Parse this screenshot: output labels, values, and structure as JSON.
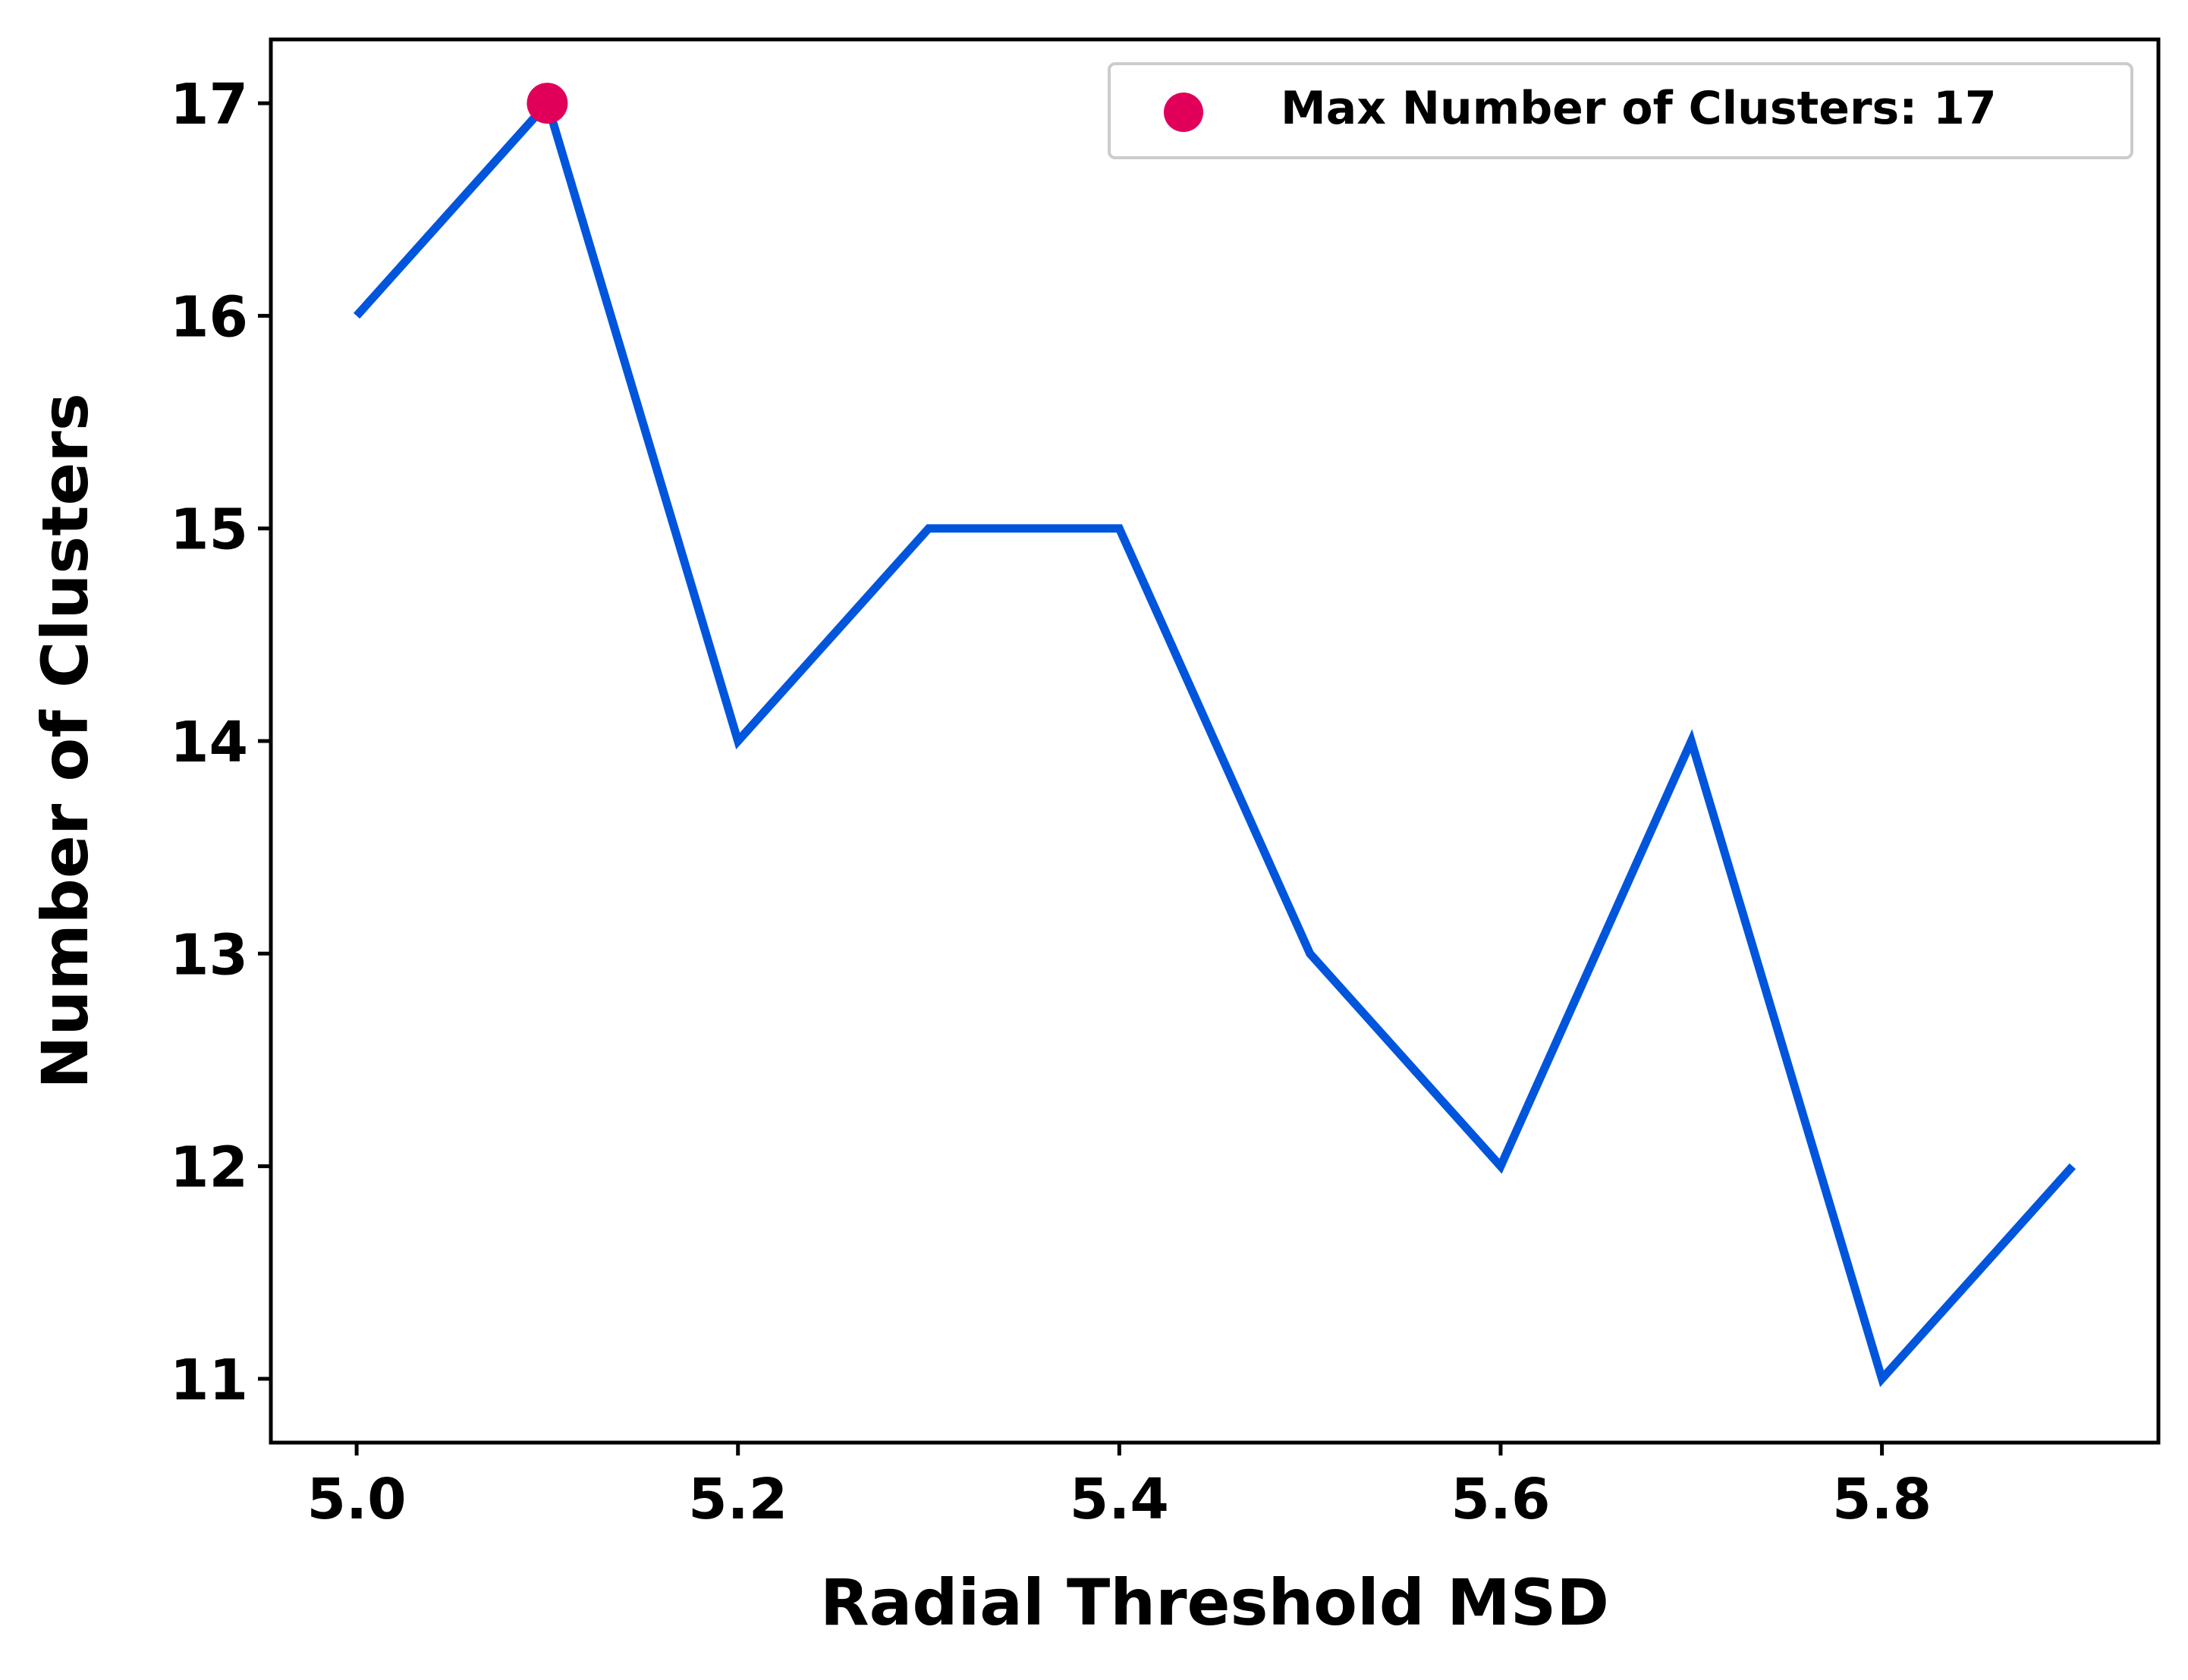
{
  "chart_data": {
    "type": "line",
    "title": "",
    "xlabel": "Radial Threshold MSD",
    "ylabel": "Number of Clusters",
    "x": [
      5.0,
      5.1,
      5.2,
      5.3,
      5.4,
      5.5,
      5.6,
      5.7,
      5.8,
      5.9
    ],
    "series": [
      {
        "values": [
          16,
          17,
          14,
          15,
          15,
          13,
          12,
          14,
          11,
          12
        ],
        "color": "#0055dd"
      }
    ],
    "highlight": {
      "name": "Max Number of Clusters: 17",
      "x": 5.1,
      "y": 17,
      "color": "#e0005a"
    },
    "xlim": [
      4.955,
      5.945
    ],
    "ylim": [
      10.7,
      17.3
    ],
    "xticks": [
      5.0,
      5.2,
      5.4,
      5.6,
      5.8
    ],
    "xtick_labels": [
      "5.0",
      "5.2",
      "5.4",
      "5.6",
      "5.8"
    ],
    "yticks": [
      11,
      12,
      13,
      14,
      15,
      16,
      17
    ],
    "ytick_labels": [
      "11",
      "12",
      "13",
      "14",
      "15",
      "16",
      "17"
    ],
    "grid": false,
    "legend_position": "top-right"
  }
}
